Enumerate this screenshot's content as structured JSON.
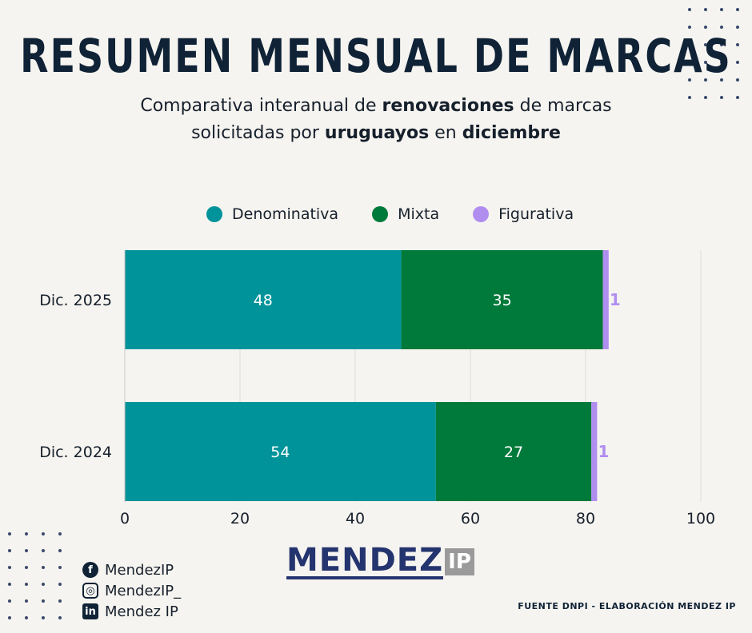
{
  "header": {
    "title": "RESUMEN MENSUAL DE MARCAS",
    "subtitle_line1_a": "Comparativa interanual de ",
    "subtitle_line1_b": "renovaciones",
    "subtitle_line1_c": " de marcas",
    "subtitle_line2_a": "solicitadas por ",
    "subtitle_line2_b": "uruguayos",
    "subtitle_line2_c": " en ",
    "subtitle_line2_d": "diciembre"
  },
  "chart_data": {
    "type": "bar",
    "orientation": "horizontal",
    "stacked": true,
    "categories": [
      "Dic. 2025",
      "Dic. 2024"
    ],
    "series": [
      {
        "name": "Denominativa",
        "values": [
          48,
          54
        ],
        "color": "#00939a"
      },
      {
        "name": "Mixta",
        "values": [
          35,
          27
        ],
        "color": "#007a3a"
      },
      {
        "name": "Figurativa",
        "values": [
          1,
          1
        ],
        "color": "#b08ef0"
      }
    ],
    "xlim": [
      0,
      100
    ],
    "xticks": [
      "0",
      "20",
      "40",
      "60",
      "80",
      "100"
    ],
    "grid": true,
    "legend": "top"
  },
  "social": {
    "facebook": "MendezIP",
    "instagram": "MendezIP_",
    "linkedin": "Mendez IP"
  },
  "logo": {
    "main": "MENDEZ",
    "suffix": "IP"
  },
  "source": "FUENTE DNPI - ELABORACIÓN MENDEZ IP"
}
